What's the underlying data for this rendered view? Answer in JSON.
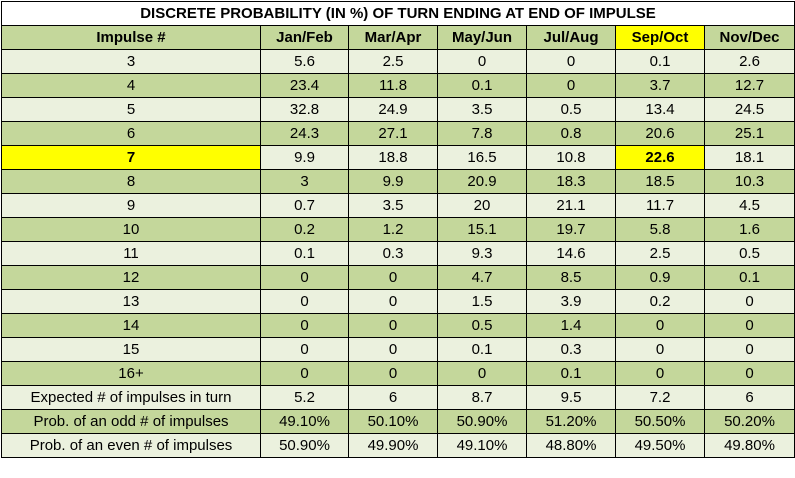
{
  "title": "DISCRETE PROBABILITY (IN %) OF TURN ENDING AT END OF IMPULSE",
  "headers": [
    "Impulse #",
    "Jan/Feb",
    "Mar/Apr",
    "May/Jun",
    "Jul/Aug",
    "Sep/Oct",
    "Nov/Dec"
  ],
  "highlight_color": "#ffff00",
  "rows": [
    [
      "3",
      "5.6",
      "2.5",
      "0",
      "0",
      "0.1",
      "2.6"
    ],
    [
      "4",
      "23.4",
      "11.8",
      "0.1",
      "0",
      "3.7",
      "12.7"
    ],
    [
      "5",
      "32.8",
      "24.9",
      "3.5",
      "0.5",
      "13.4",
      "24.5"
    ],
    [
      "6",
      "24.3",
      "27.1",
      "7.8",
      "0.8",
      "20.6",
      "25.1"
    ],
    [
      "7",
      "9.9",
      "18.8",
      "16.5",
      "10.8",
      "22.6",
      "18.1"
    ],
    [
      "8",
      "3",
      "9.9",
      "20.9",
      "18.3",
      "18.5",
      "10.3"
    ],
    [
      "9",
      "0.7",
      "3.5",
      "20",
      "21.1",
      "11.7",
      "4.5"
    ],
    [
      "10",
      "0.2",
      "1.2",
      "15.1",
      "19.7",
      "5.8",
      "1.6"
    ],
    [
      "11",
      "0.1",
      "0.3",
      "9.3",
      "14.6",
      "2.5",
      "0.5"
    ],
    [
      "12",
      "0",
      "0",
      "4.7",
      "8.5",
      "0.9",
      "0.1"
    ],
    [
      "13",
      "0",
      "0",
      "1.5",
      "3.9",
      "0.2",
      "0"
    ],
    [
      "14",
      "0",
      "0",
      "0.5",
      "1.4",
      "0",
      "0"
    ],
    [
      "15",
      "0",
      "0",
      "0.1",
      "0.3",
      "0",
      "0"
    ],
    [
      "16+",
      "0",
      "0",
      "0",
      "0.1",
      "0",
      "0"
    ],
    [
      "Expected # of impulses in turn",
      "5.2",
      "6",
      "8.7",
      "9.5",
      "7.2",
      "6"
    ],
    [
      "Prob. of an odd # of impulses",
      "49.10%",
      "50.10%",
      "50.90%",
      "51.20%",
      "50.50%",
      "50.20%"
    ],
    [
      "Prob. of an even # of impulses",
      "50.90%",
      "49.90%",
      "49.10%",
      "48.80%",
      "49.50%",
      "49.80%"
    ]
  ]
}
